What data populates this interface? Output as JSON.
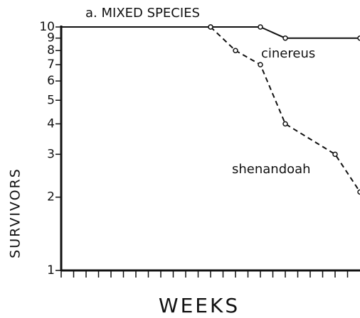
{
  "chart_data": {
    "type": "line",
    "title": "a. MIXED SPECIES",
    "xlabel": "WEEKS",
    "ylabel": "SURVIVORS",
    "log_y": true,
    "xlim": [
      0,
      24
    ],
    "xticks": [
      0,
      1,
      2,
      3,
      4,
      5,
      6,
      7,
      8,
      9,
      10,
      11,
      12,
      13,
      14,
      15,
      16,
      17,
      18,
      19,
      20,
      21,
      22,
      23
    ],
    "ylim": [
      1,
      10
    ],
    "yticks": [
      1,
      2,
      3,
      4,
      5,
      6,
      7,
      8,
      9,
      10
    ],
    "series": [
      {
        "name": "cinereus",
        "color": "#111111",
        "dashed": false,
        "x": [
          0,
          12,
          16,
          18,
          24
        ],
        "values": [
          10,
          10,
          10,
          9,
          9
        ]
      },
      {
        "name": "shenandoah",
        "color": "#111111",
        "dashed": true,
        "x": [
          12,
          14,
          16,
          18,
          22,
          24
        ],
        "values": [
          10,
          8,
          7,
          4,
          3,
          2.1
        ]
      }
    ]
  }
}
